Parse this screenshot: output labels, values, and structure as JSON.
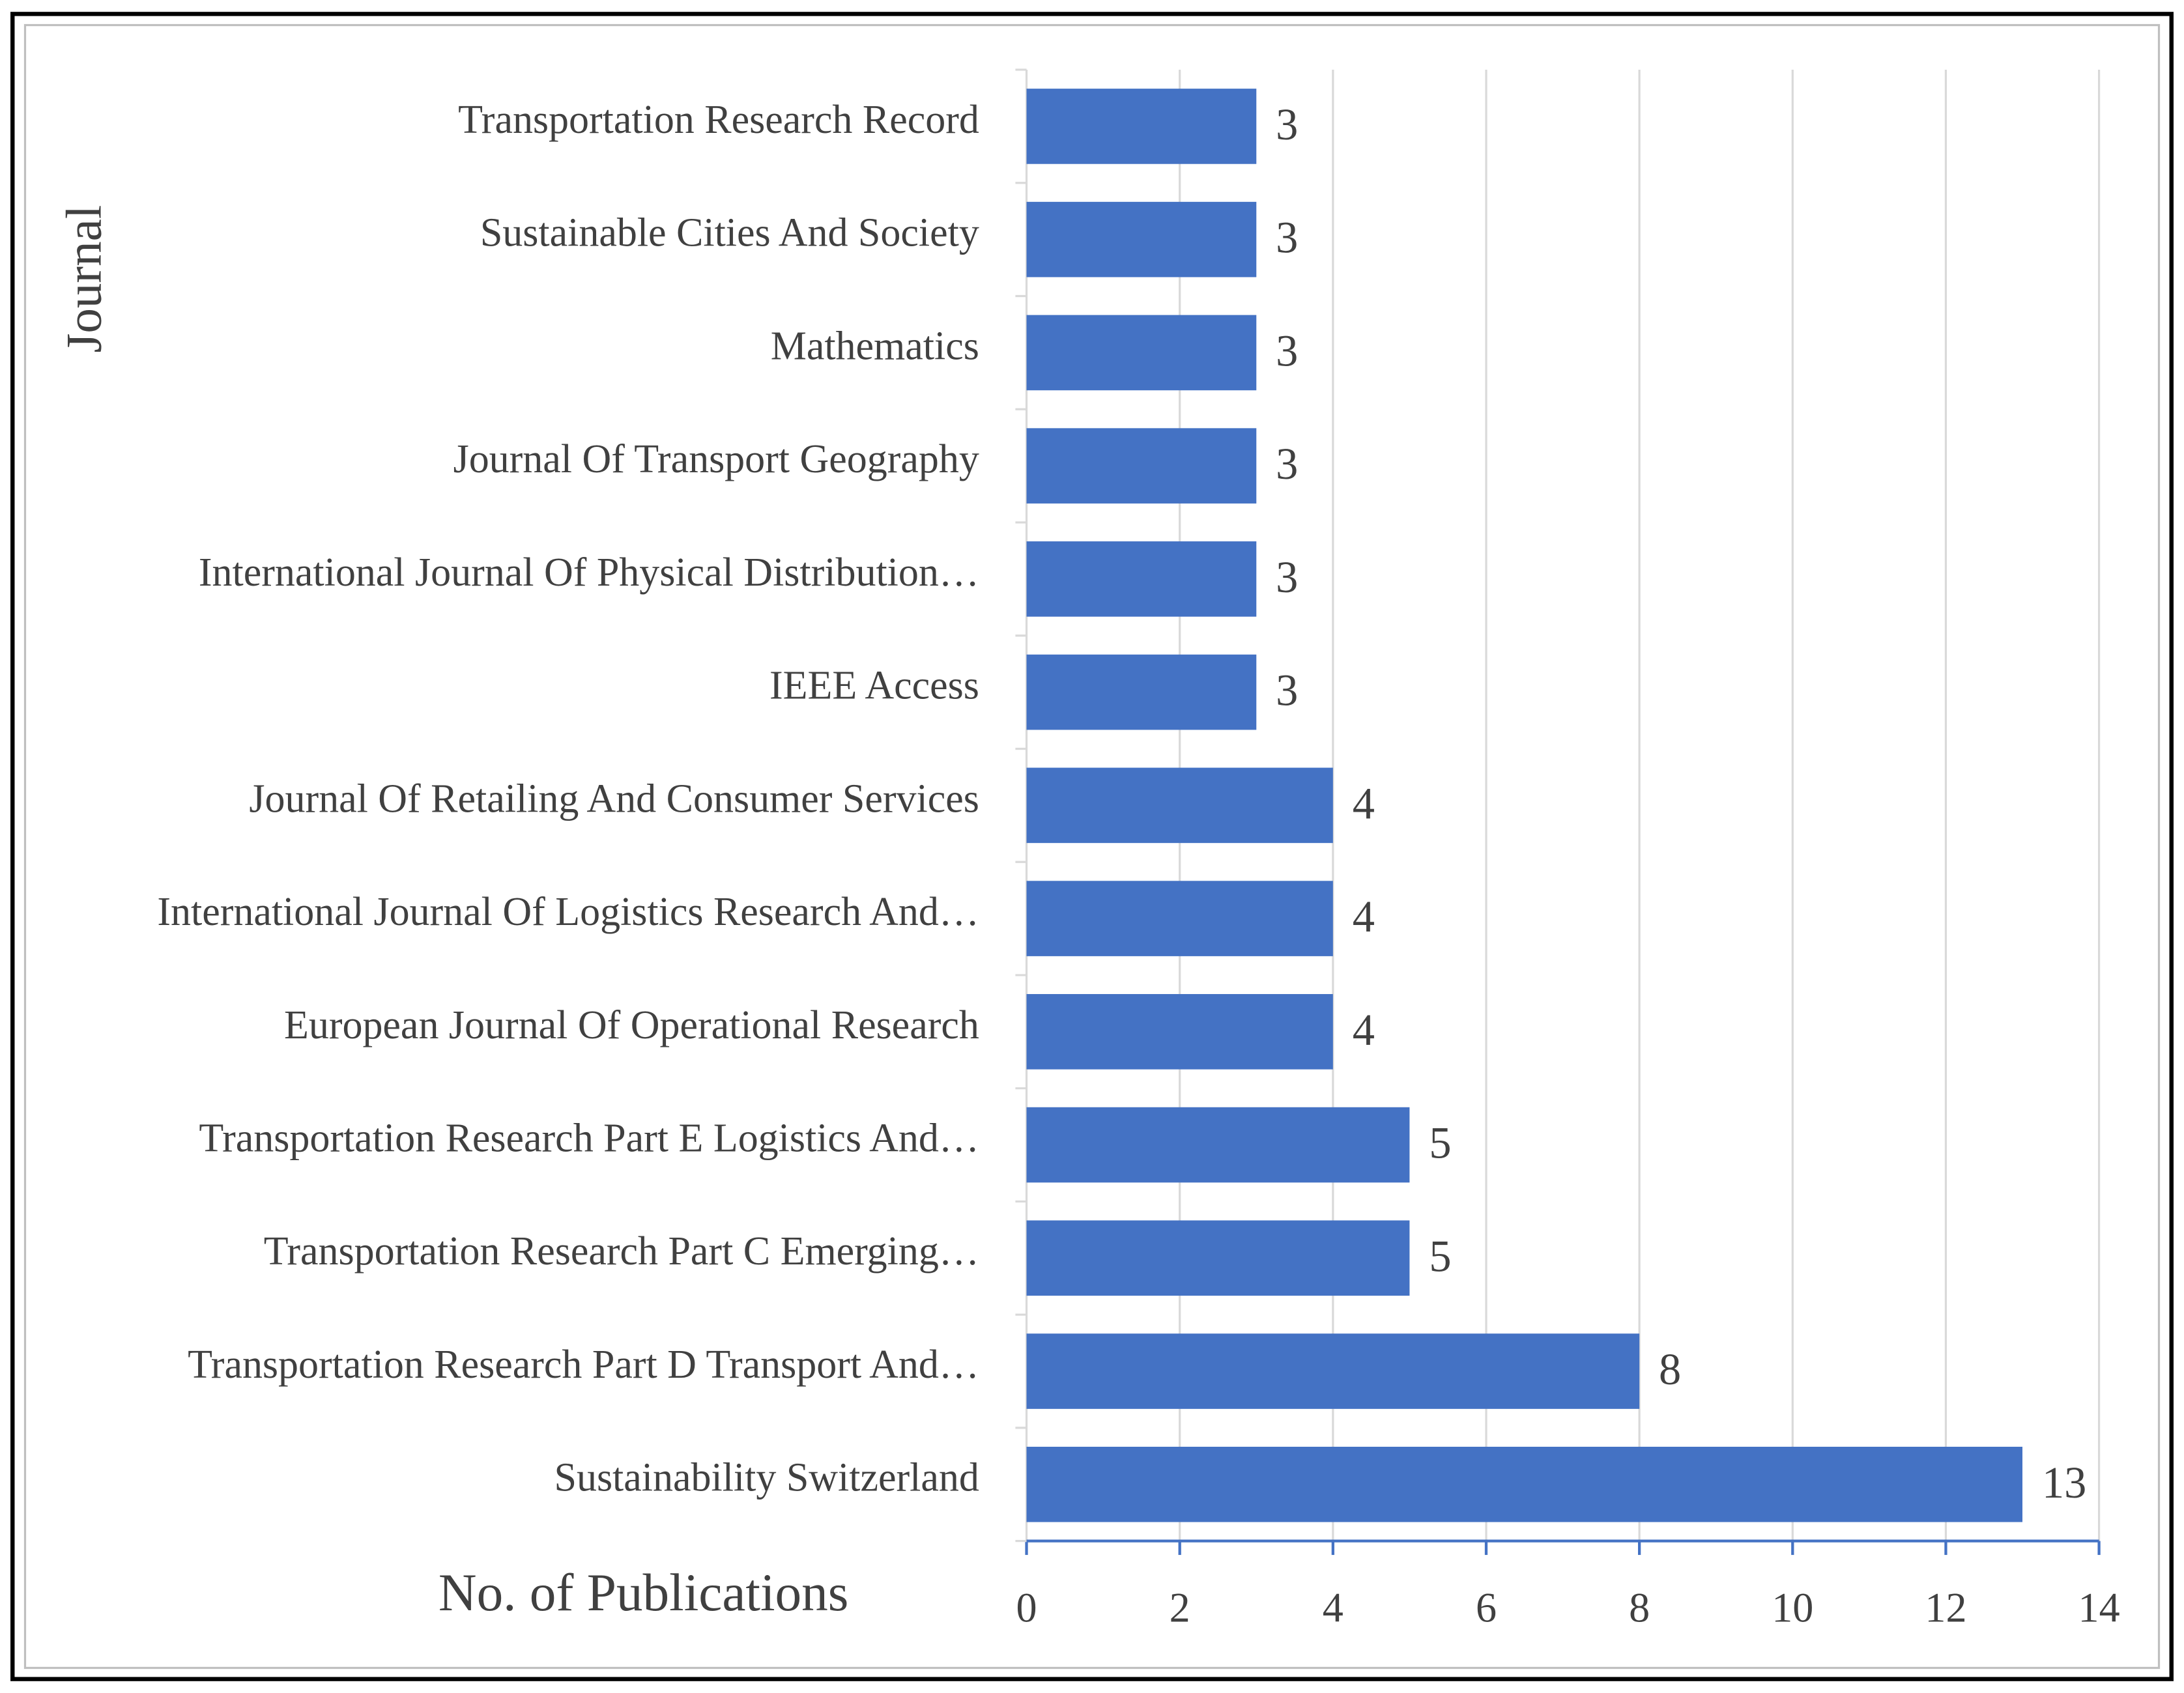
{
  "chart_data": {
    "type": "bar",
    "orientation": "horizontal",
    "y_axis_label": "Journal",
    "x_axis_label": "No. of Publications",
    "categories": [
      "Transportation Research Record",
      "Sustainable Cities And Society",
      "Mathematics",
      "Journal Of Transport Geography",
      "International Journal Of Physical Distribution…",
      "IEEE Access",
      "Journal Of Retailing And Consumer Services",
      "International Journal Of Logistics Research And…",
      "European Journal Of Operational Research",
      "Transportation Research Part E Logistics And…",
      "Transportation Research Part C Emerging…",
      "Transportation Research Part D Transport And…",
      "Sustainability Switzerland"
    ],
    "values": [
      3,
      3,
      3,
      3,
      3,
      3,
      4,
      4,
      4,
      5,
      5,
      8,
      13
    ],
    "color": "#4472c4",
    "xlim": [
      0,
      14
    ],
    "xticks": [
      0,
      2,
      4,
      6,
      8,
      10,
      12,
      14
    ],
    "grid": true
  }
}
